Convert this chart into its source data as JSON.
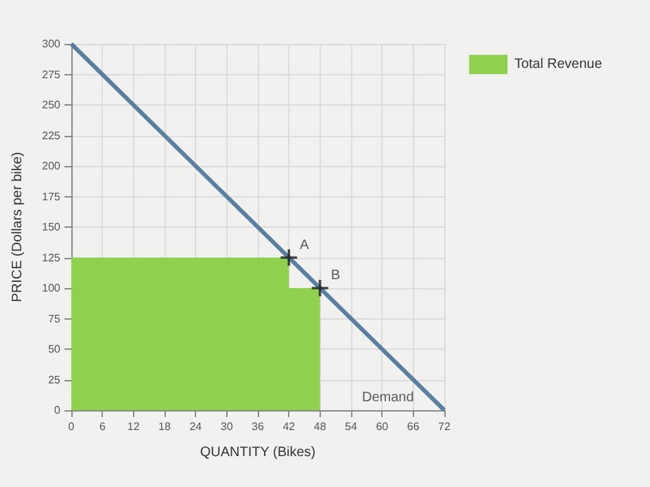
{
  "chart_data": {
    "type": "line",
    "xlabel": "QUANTITY (Bikes)",
    "ylabel": "PRICE (Dollars per bike)",
    "series": [
      {
        "type": "area",
        "name": "Total Revenue",
        "color": "#8fd14f",
        "x": [
          0,
          42,
          42,
          48
        ],
        "values": [
          125,
          125,
          100,
          100
        ],
        "marker": "none"
      },
      {
        "color": "#5a7fa0",
        "x": [
          0,
          72
        ],
        "values": [
          300,
          0
        ],
        "marker": "none"
      },
      {
        "type": "scatter",
        "color": "#1a1a1a",
        "x": [
          42,
          48
        ],
        "values": [
          125,
          100
        ],
        "marker": "cross"
      }
    ],
    "annotations": [
      {
        "text": "A",
        "x": 42,
        "y": 125
      },
      {
        "text": "B",
        "x": 48,
        "y": 100
      },
      {
        "text": "Demand",
        "x": 72,
        "y": 0
      }
    ],
    "xlim": [
      0,
      72
    ],
    "xticks": [
      0,
      6,
      12,
      18,
      24,
      30,
      36,
      42,
      48,
      54,
      60,
      66,
      72
    ],
    "ylim": [
      0,
      300
    ],
    "yticks": [
      0,
      25,
      50,
      75,
      100,
      125,
      150,
      175,
      200,
      225,
      250,
      275,
      300
    ],
    "grid": true,
    "legend": "top right"
  }
}
